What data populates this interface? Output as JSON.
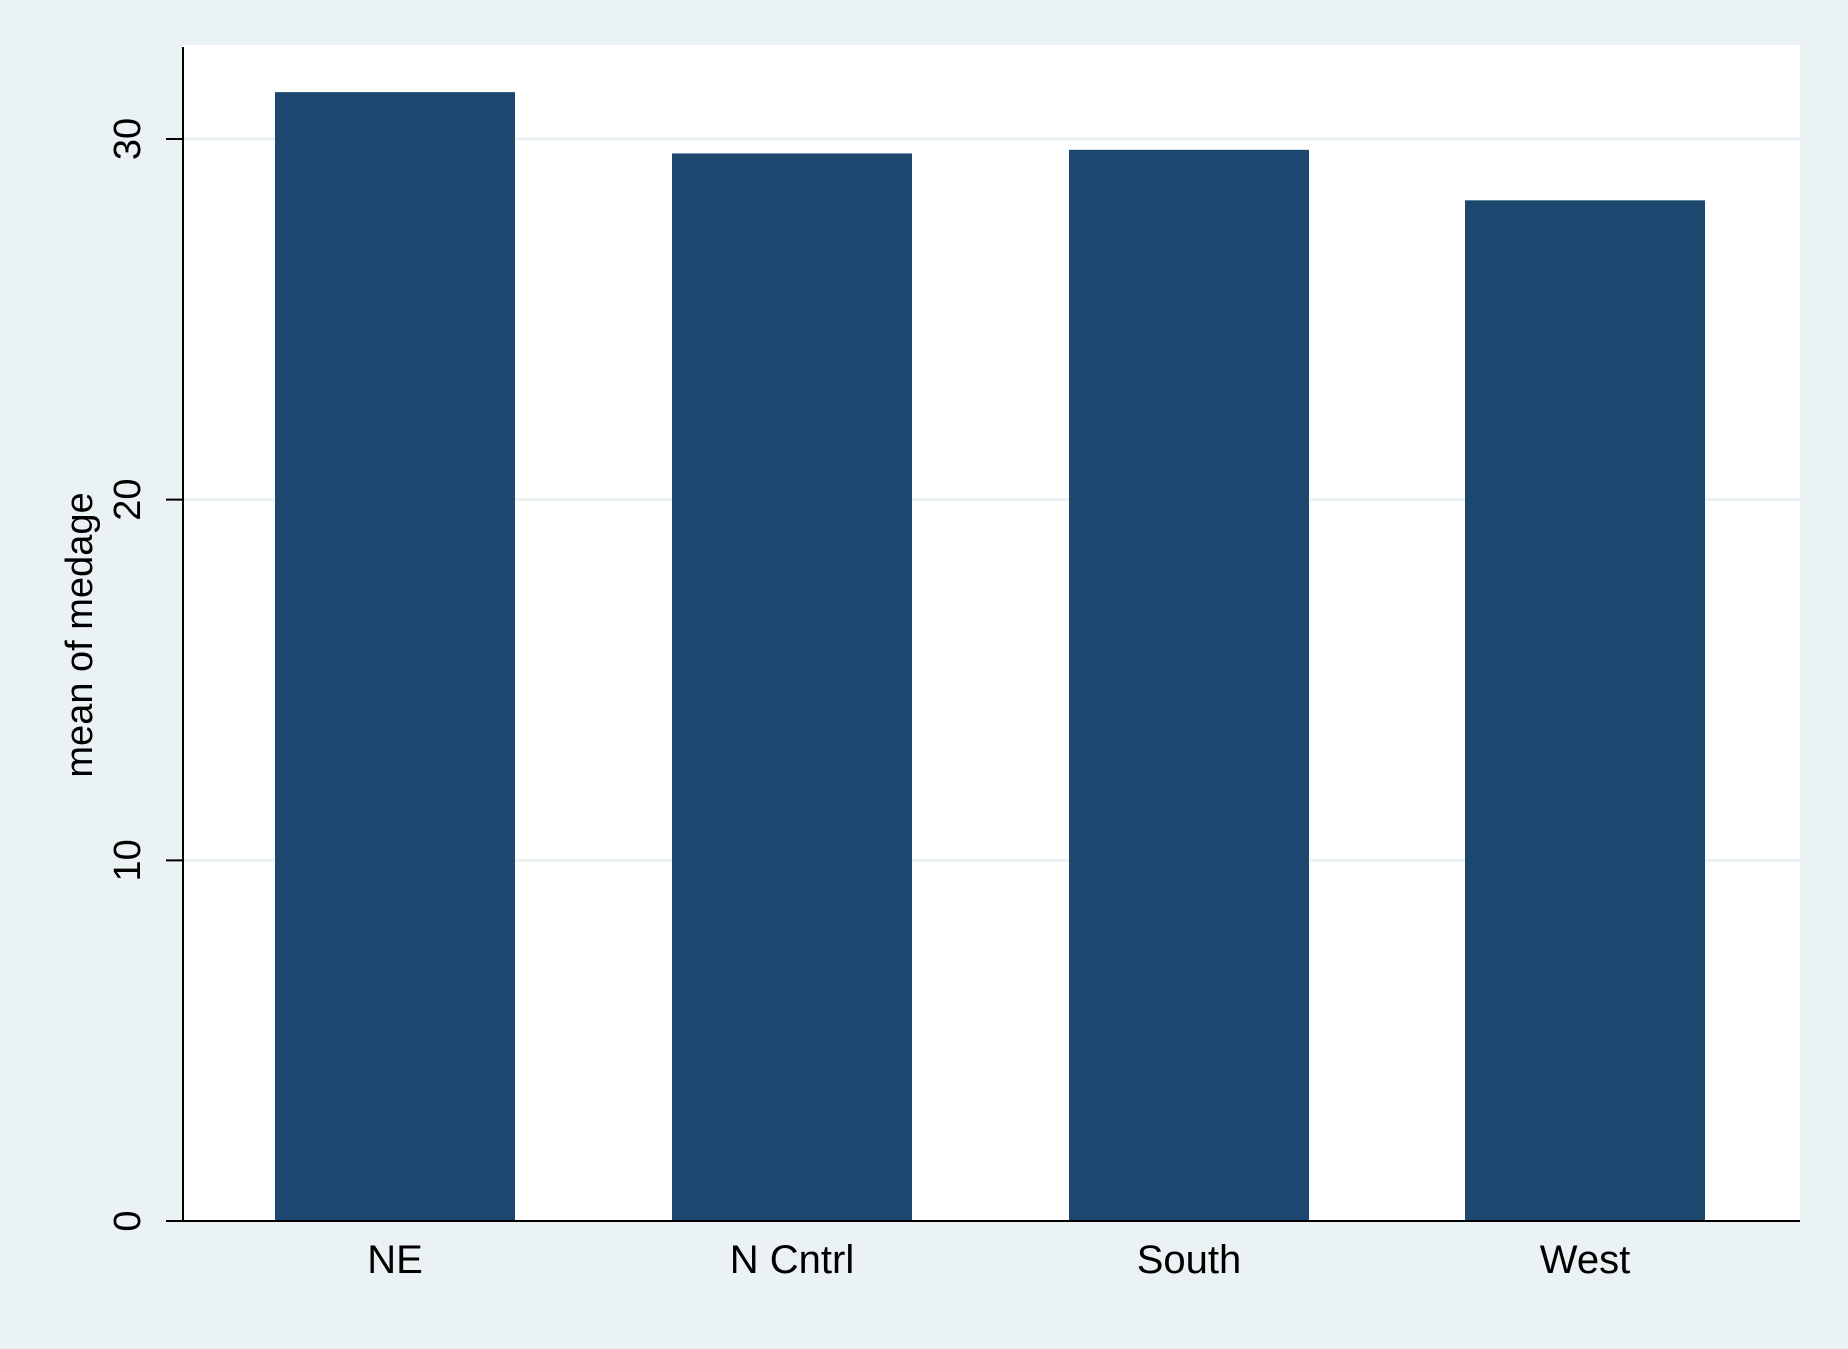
{
  "chart_data": {
    "type": "bar",
    "title": "",
    "xlabel": "",
    "ylabel": "mean of medage",
    "categories": [
      "NE",
      "N Cntrl",
      "South",
      "West"
    ],
    "values": [
      31.3,
      29.6,
      29.7,
      28.3
    ],
    "ylim": [
      0,
      33
    ],
    "yticks": [
      0,
      10,
      20,
      30
    ],
    "grid": true,
    "legend": "none",
    "colors": {
      "bar": "#1c4870",
      "background": "#eaf2f3",
      "plot_background": "#ffffff",
      "gridline": "#eaf2f3",
      "axis": "#000000"
    }
  }
}
